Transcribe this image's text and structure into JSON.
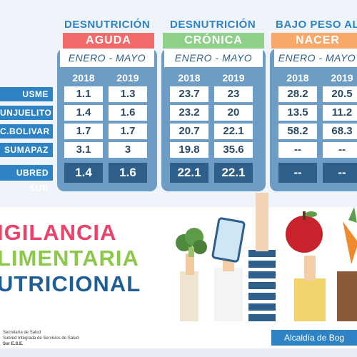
{
  "categories": [
    {
      "title": "DESNUTRICIÓN",
      "band": "AGUDA",
      "band_color": "#f26b6b",
      "band_text_color": "#ffffff",
      "period": "ENERO - MAYO",
      "years": [
        "2018",
        "2019"
      ]
    },
    {
      "title": "DESNUTRICIÓN",
      "band": "CRÓNICA",
      "band_color": "#8fd18a",
      "band_text_color": "#ffffff",
      "period": "ENERO - MAYO",
      "years": [
        "2018",
        "2019"
      ]
    },
    {
      "title": "BAJO PESO AL",
      "band": "NACER",
      "band_color": "#f7a86b",
      "band_text_color": "#ffffff",
      "period": "ENERO - MAYO",
      "years": [
        "2018",
        "2019"
      ]
    }
  ],
  "rows": [
    {
      "label": "USME",
      "values": [
        [
          "1.1",
          "1.3"
        ],
        [
          "23.7",
          "23"
        ],
        [
          "28.2",
          "20.5"
        ]
      ]
    },
    {
      "label": "UNJUELITO",
      "values": [
        [
          "1.4",
          "1.6"
        ],
        [
          "23.2",
          "20"
        ],
        [
          "13.5",
          "11.2"
        ]
      ]
    },
    {
      "label": "C.BOLIVAR",
      "values": [
        [
          "1.7",
          "1.7"
        ],
        [
          "20.7",
          "22.1"
        ],
        [
          "58.2",
          "68.3"
        ]
      ]
    },
    {
      "label": "SUMAPAZ",
      "values": [
        [
          "3.1",
          "3"
        ],
        [
          "19.8",
          "35.6"
        ],
        [
          "--",
          "--"
        ]
      ]
    }
  ],
  "total": {
    "label": "UBRED SUR",
    "values": [
      [
        "1.4",
        "1.6"
      ],
      [
        "22.1",
        "22.1"
      ],
      [
        "--",
        "--"
      ]
    ]
  },
  "title_lines": [
    {
      "text": "IGILANCIA",
      "color": "#e8436b"
    },
    {
      "text": "LIMENTARIA",
      "color": "#8cc84b"
    },
    {
      "text": "UTRICIONAL",
      "color": "#1f5f95"
    }
  ],
  "footer": {
    "line1": "Secretaría de Salud",
    "line2": "Subred Integrada de Servicios de Salud",
    "line3": "Sur E.S.E.",
    "alcaldia": "Alcaldía de Bog"
  },
  "colors": {
    "panel": "#6d9dc4",
    "row_label_bg": "#2e83c4",
    "total_cell_bg": "#2d5f8a"
  }
}
